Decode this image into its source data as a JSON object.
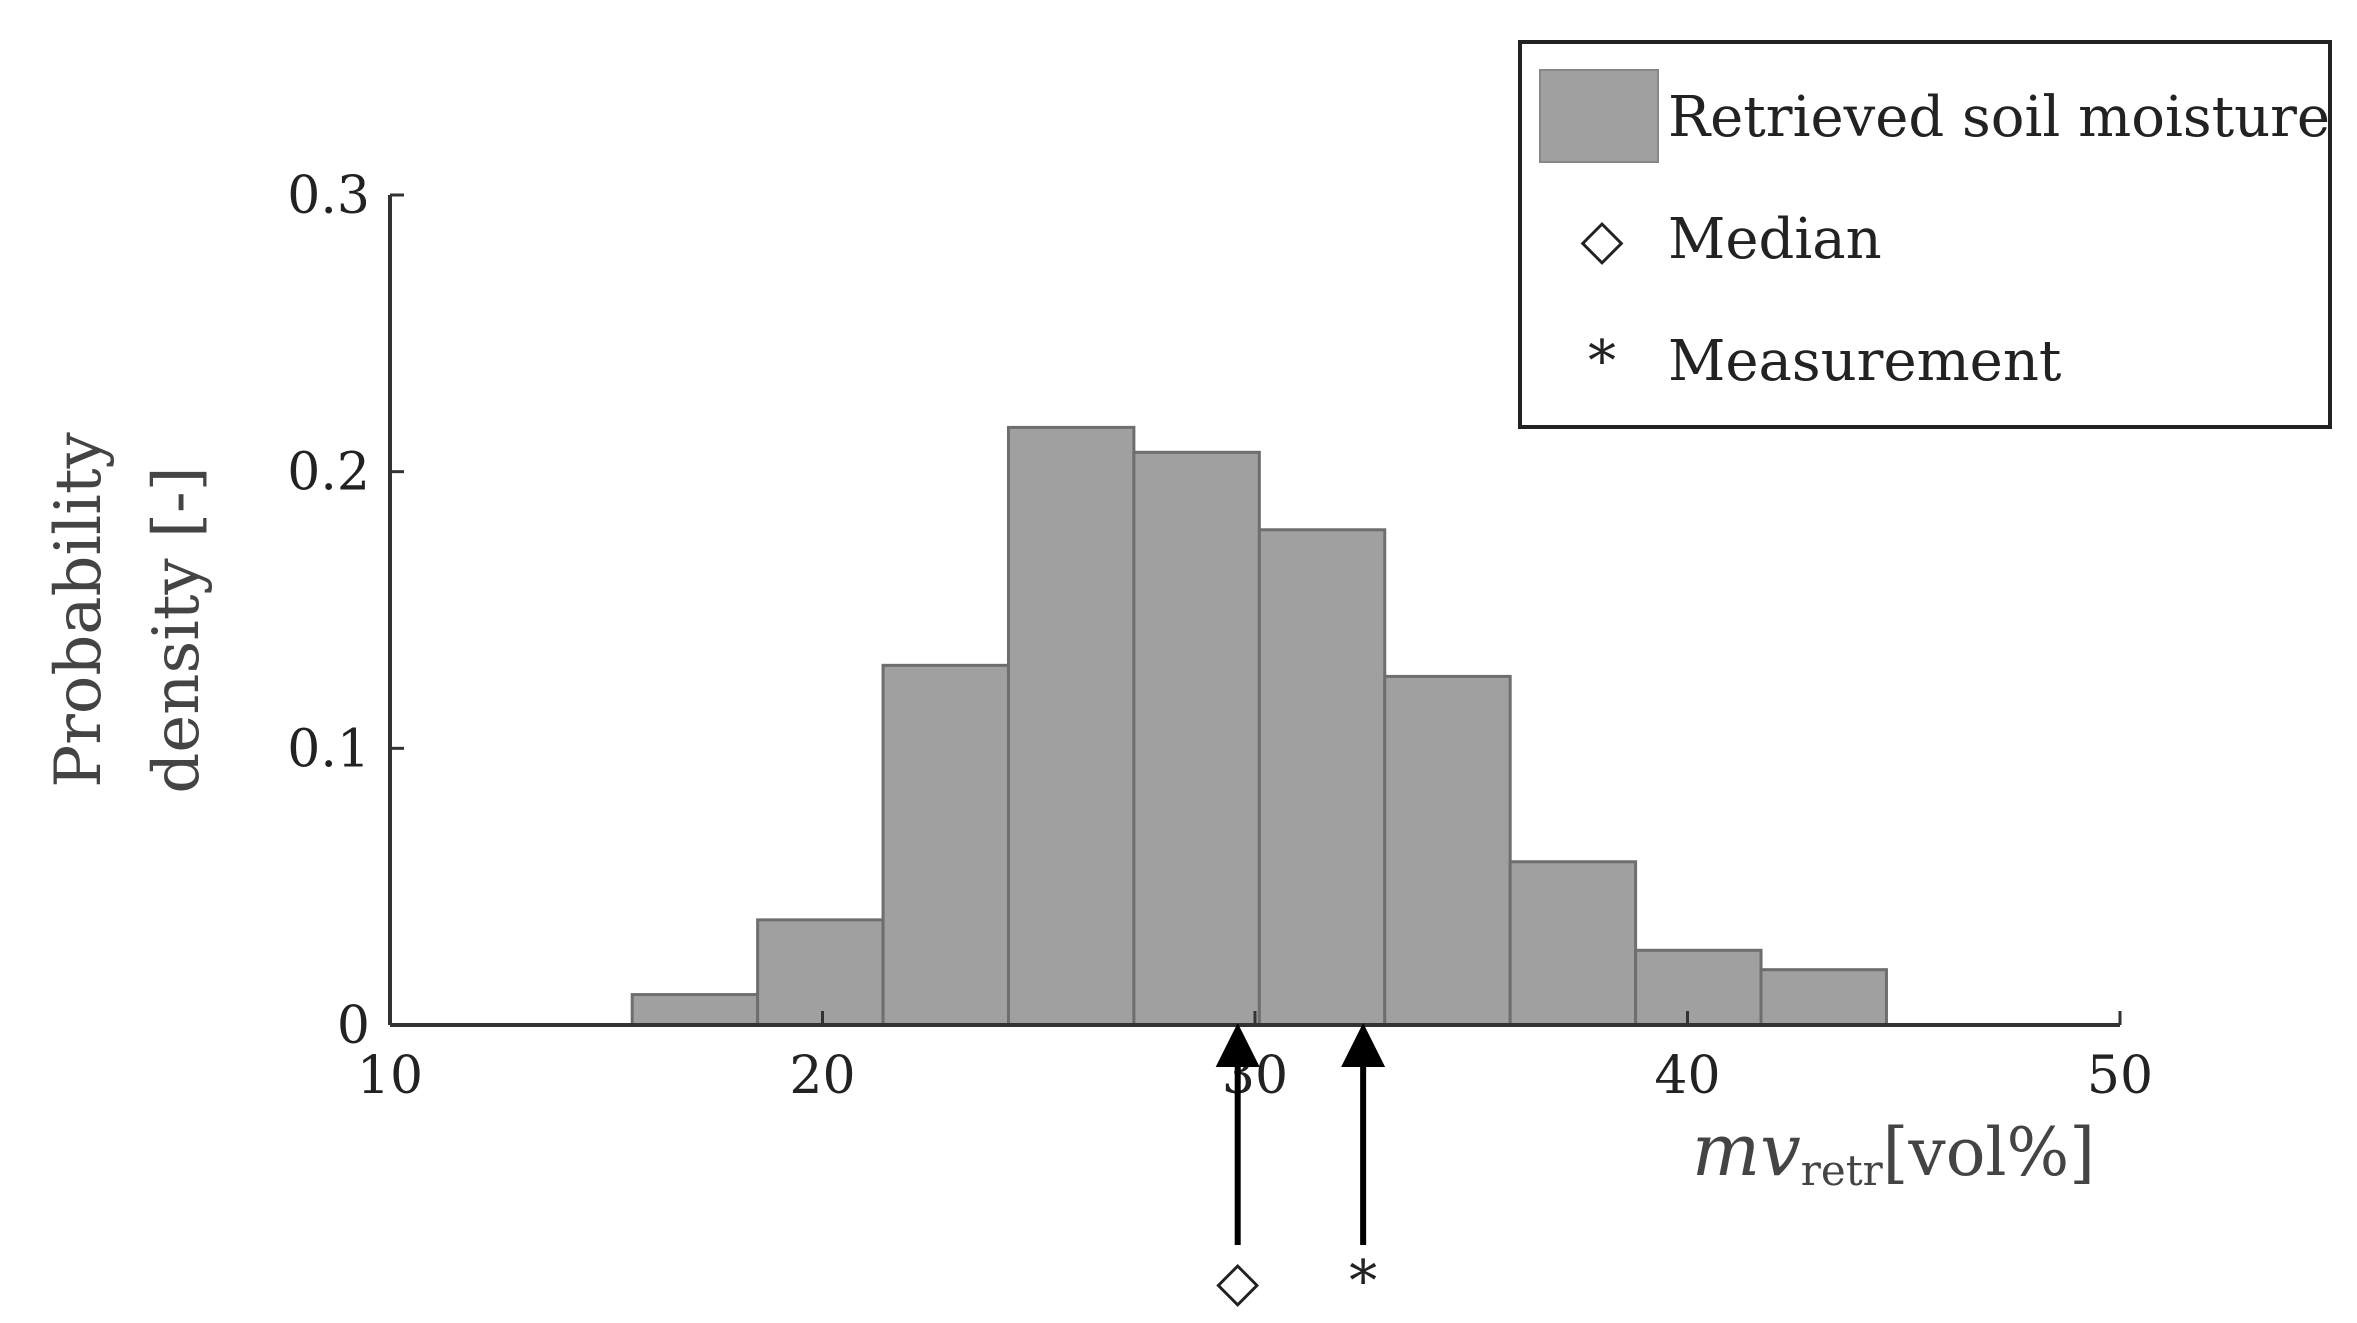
{
  "chart_data": {
    "type": "bar",
    "subtype": "histogram",
    "xlabel": {
      "main": "mv",
      "subscript": "retr",
      "unit": "[vol%]"
    },
    "ylabel": [
      "Probability",
      "density [-]"
    ],
    "xlim": [
      10,
      50
    ],
    "ylim": [
      0,
      0.3
    ],
    "xticks": [
      "10",
      "20",
      "30",
      "40",
      "50"
    ],
    "yticks": [
      "0",
      "0.1",
      "0.2",
      "0.3"
    ],
    "bin_width": 2.9,
    "bins": [
      {
        "start": 15.6,
        "value": 0.011
      },
      {
        "start": 18.5,
        "value": 0.038
      },
      {
        "start": 21.4,
        "value": 0.13
      },
      {
        "start": 24.3,
        "value": 0.216
      },
      {
        "start": 27.2,
        "value": 0.207
      },
      {
        "start": 30.1,
        "value": 0.179
      },
      {
        "start": 33.0,
        "value": 0.126
      },
      {
        "start": 35.9,
        "value": 0.059
      },
      {
        "start": 38.8,
        "value": 0.027
      },
      {
        "start": 41.7,
        "value": 0.02
      }
    ],
    "markers": [
      {
        "key": "median",
        "x": 29.6,
        "symbol": "◇"
      },
      {
        "key": "measurement",
        "x": 32.5,
        "symbol": "*"
      }
    ],
    "legend": {
      "placement": "top-right",
      "entries": [
        {
          "label": "Retrieved soil moisture",
          "symbol": "patch"
        },
        {
          "label": "Median",
          "symbol": "◇"
        },
        {
          "label": "Measurement",
          "symbol": "*"
        }
      ]
    },
    "colors": {
      "bar_fill": "#a0a0a0",
      "bar_edge": "#6e6e6e",
      "axis": "#333333",
      "arrow": "#000000"
    }
  }
}
